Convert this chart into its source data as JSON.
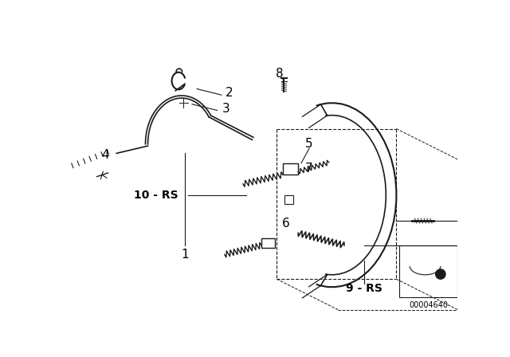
{
  "background_color": "#ffffff",
  "line_color": "#1a1a1a",
  "label_color": "#000000",
  "diagram_code": "00004640",
  "fig_width": 6.4,
  "fig_height": 4.48
}
